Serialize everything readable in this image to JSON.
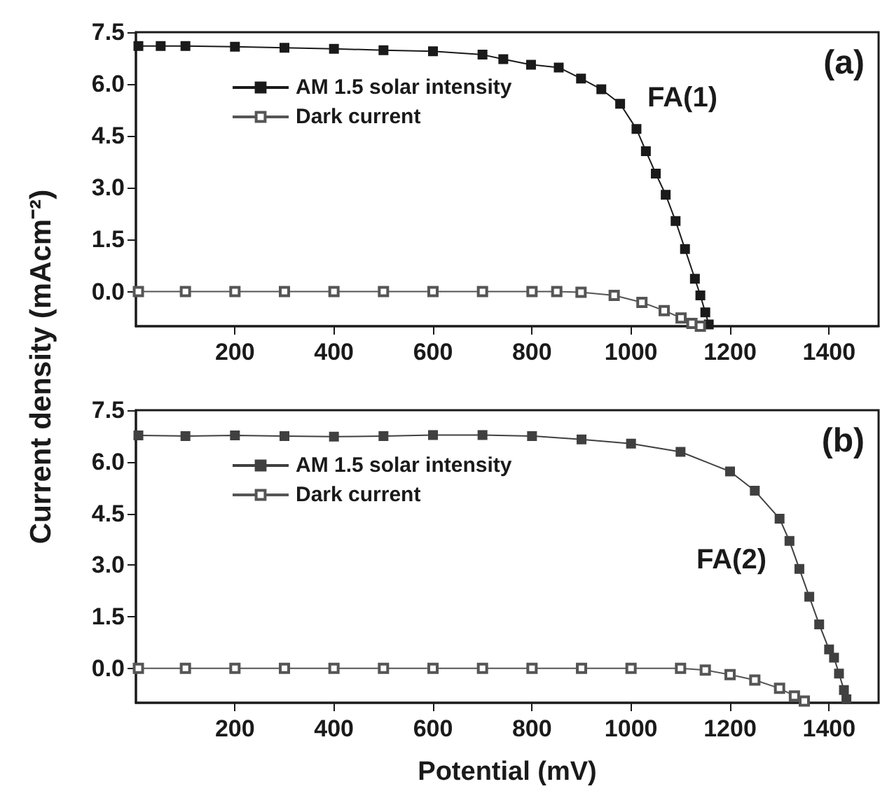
{
  "chart_data": [
    {
      "type": "line",
      "ylabel": "Current density (mAcm⁻²)",
      "xlim": [
        0,
        1500
      ],
      "xticks": [
        200,
        400,
        600,
        800,
        1000,
        1200,
        1400
      ],
      "ylim": [
        -1,
        7.5
      ],
      "yticks": [
        {
          "value": 0,
          "label": "0.0"
        },
        {
          "value": 1.5,
          "label": "1.5"
        },
        {
          "value": 3,
          "label": "3.0"
        },
        {
          "value": 4.5,
          "label": "4.5"
        },
        {
          "value": 6,
          "label": "6.0"
        },
        {
          "value": 7.5,
          "label": "7.5"
        }
      ],
      "legend": "top left",
      "marker": "square",
      "grid": false,
      "annotations": [
        "(a)",
        "FA(1)"
      ],
      "series": [
        {
          "name": "AM 1.5 solar intensity",
          "color": "#1a1a1a",
          "x": [
            5,
            50,
            100,
            200,
            300,
            400,
            500,
            600,
            700,
            742,
            798,
            854,
            899,
            940,
            978,
            1011,
            1030,
            1050,
            1070,
            1090,
            1109,
            1129,
            1140,
            1150,
            1157
          ],
          "values": [
            7.1,
            7.1,
            7.1,
            7.08,
            7.05,
            7.02,
            6.98,
            6.95,
            6.85,
            6.72,
            6.56,
            6.48,
            6.16,
            5.85,
            5.43,
            4.7,
            4.06,
            3.41,
            2.8,
            2.04,
            1.23,
            0.37,
            -0.11,
            -0.6,
            -0.95
          ]
        },
        {
          "name": "Dark current",
          "color": "#555555",
          "x": [
            5,
            100,
            200,
            300,
            400,
            500,
            600,
            700,
            800,
            850,
            899,
            966,
            1022,
            1067,
            1101,
            1123,
            1140
          ],
          "values": [
            0,
            0,
            0,
            0,
            0,
            0,
            0,
            0,
            0,
            0,
            -0.02,
            -0.11,
            -0.31,
            -0.55,
            -0.76,
            -0.92,
            -1.0
          ]
        }
      ]
    },
    {
      "type": "line",
      "xlabel": "Potential (mV)",
      "xlim": [
        0,
        1500
      ],
      "xticks": [
        200,
        400,
        600,
        800,
        1000,
        1200,
        1400
      ],
      "ylim": [
        -1,
        7.5
      ],
      "yticks": [
        {
          "value": 0,
          "label": "0.0"
        },
        {
          "value": 1.5,
          "label": "1.5"
        },
        {
          "value": 3,
          "label": "3.0"
        },
        {
          "value": 4.5,
          "label": "4.5"
        },
        {
          "value": 6,
          "label": "6.0"
        },
        {
          "value": 7.5,
          "label": "7.5"
        }
      ],
      "legend": "top left",
      "marker": "square",
      "grid": false,
      "annotations": [
        "(b)",
        "FA(2)"
      ],
      "series": [
        {
          "name": "AM 1.5 solar intensity",
          "color": "#404040",
          "x": [
            5,
            100,
            200,
            300,
            400,
            500,
            600,
            700,
            800,
            900,
            1000,
            1100,
            1200,
            1250,
            1300,
            1320,
            1340,
            1360,
            1380,
            1400,
            1410,
            1420,
            1430,
            1435
          ],
          "values": [
            6.77,
            6.75,
            6.77,
            6.75,
            6.73,
            6.75,
            6.78,
            6.78,
            6.75,
            6.65,
            6.53,
            6.29,
            5.72,
            5.16,
            4.35,
            3.7,
            2.89,
            2.08,
            1.28,
            0.55,
            0.31,
            -0.15,
            -0.63,
            -0.9
          ]
        },
        {
          "name": "Dark current",
          "color": "#555555",
          "x": [
            5,
            100,
            200,
            300,
            400,
            500,
            600,
            700,
            800,
            900,
            1000,
            1100,
            1150,
            1200,
            1250,
            1300,
            1330,
            1350
          ],
          "values": [
            0,
            0,
            0,
            0,
            0,
            0,
            0,
            0,
            0,
            0,
            0,
            0,
            -0.05,
            -0.18,
            -0.34,
            -0.58,
            -0.8,
            -0.95
          ]
        }
      ]
    }
  ]
}
